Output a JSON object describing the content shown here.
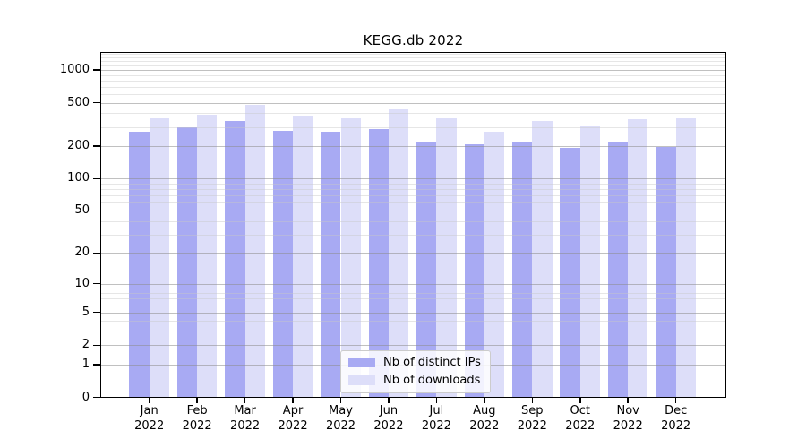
{
  "window": {
    "background": "#ffffff"
  },
  "chart_data": {
    "type": "bar",
    "title": "KEGG.db 2022",
    "categories": [
      "Jan",
      "Feb",
      "Mar",
      "Apr",
      "May",
      "Jun",
      "Jul",
      "Aug",
      "Sep",
      "Oct",
      "Nov",
      "Dec"
    ],
    "year_label": "2022",
    "series": [
      {
        "name": "Nb of distinct IPs",
        "color": "#a8aaf3",
        "values": [
          270,
          299,
          340,
          274,
          272,
          286,
          214,
          207,
          214,
          192,
          220,
          196
        ]
      },
      {
        "name": "Nb of downloads",
        "color": "#dddef9",
        "values": [
          358,
          389,
          481,
          380,
          358,
          438,
          360,
          271,
          343,
          304,
          352,
          358
        ]
      }
    ],
    "yscale": "log1p",
    "yticks": [
      0,
      1,
      2,
      5,
      10,
      20,
      50,
      100,
      200,
      500,
      1000
    ],
    "ylim": [
      0,
      1460
    ],
    "grid": true,
    "grid_minor_values_rule": "1-9, 10-90, 100-900, 1000-1400",
    "legend_position": "inside-bottom-center",
    "axis_color": "#000000",
    "xlabel": "",
    "ylabel": ""
  }
}
